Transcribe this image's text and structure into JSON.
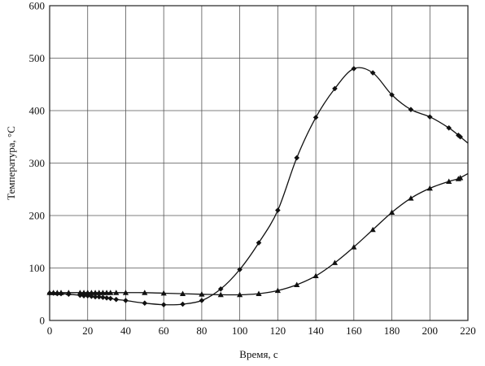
{
  "chart_data": {
    "type": "line",
    "title": "",
    "xlabel": "Время, с",
    "ylabel": "Температура, °С",
    "xlim": [
      0,
      220
    ],
    "ylim": [
      0,
      600
    ],
    "xticks": [
      0,
      20,
      40,
      60,
      80,
      100,
      120,
      140,
      160,
      180,
      200,
      220
    ],
    "yticks": [
      0,
      100,
      200,
      300,
      400,
      500,
      600
    ],
    "grid": true,
    "series": [
      {
        "marker": "diamond",
        "x": [
          0,
          2,
          4,
          6,
          10,
          16,
          18,
          20,
          22,
          24,
          26,
          28,
          30,
          32,
          35,
          40,
          50,
          60,
          70,
          80,
          90,
          100,
          110,
          120,
          130,
          140,
          150,
          160,
          170,
          180,
          190,
          200,
          210,
          215,
          216
        ],
        "y": [
          52,
          52,
          51,
          51,
          50,
          48,
          47,
          47,
          46,
          45,
          45,
          44,
          43,
          42,
          40,
          38,
          33,
          30,
          31,
          38,
          60,
          97,
          148,
          210,
          310,
          387,
          442,
          480,
          472,
          430,
          402,
          388,
          367,
          353,
          350
        ]
      },
      {
        "marker": "triangle",
        "x": [
          0,
          2,
          4,
          6,
          10,
          16,
          18,
          20,
          22,
          24,
          26,
          28,
          30,
          32,
          35,
          40,
          50,
          60,
          70,
          80,
          90,
          100,
          110,
          120,
          130,
          140,
          150,
          160,
          170,
          180,
          190,
          200,
          210,
          215,
          216
        ],
        "y": [
          53,
          53,
          53,
          53,
          53,
          53,
          53,
          53,
          53,
          53,
          53,
          53,
          53,
          53,
          53,
          53,
          53,
          52,
          51,
          50,
          49,
          49,
          51,
          57,
          68,
          85,
          110,
          140,
          173,
          206,
          233,
          252,
          265,
          270,
          272
        ]
      }
    ]
  }
}
